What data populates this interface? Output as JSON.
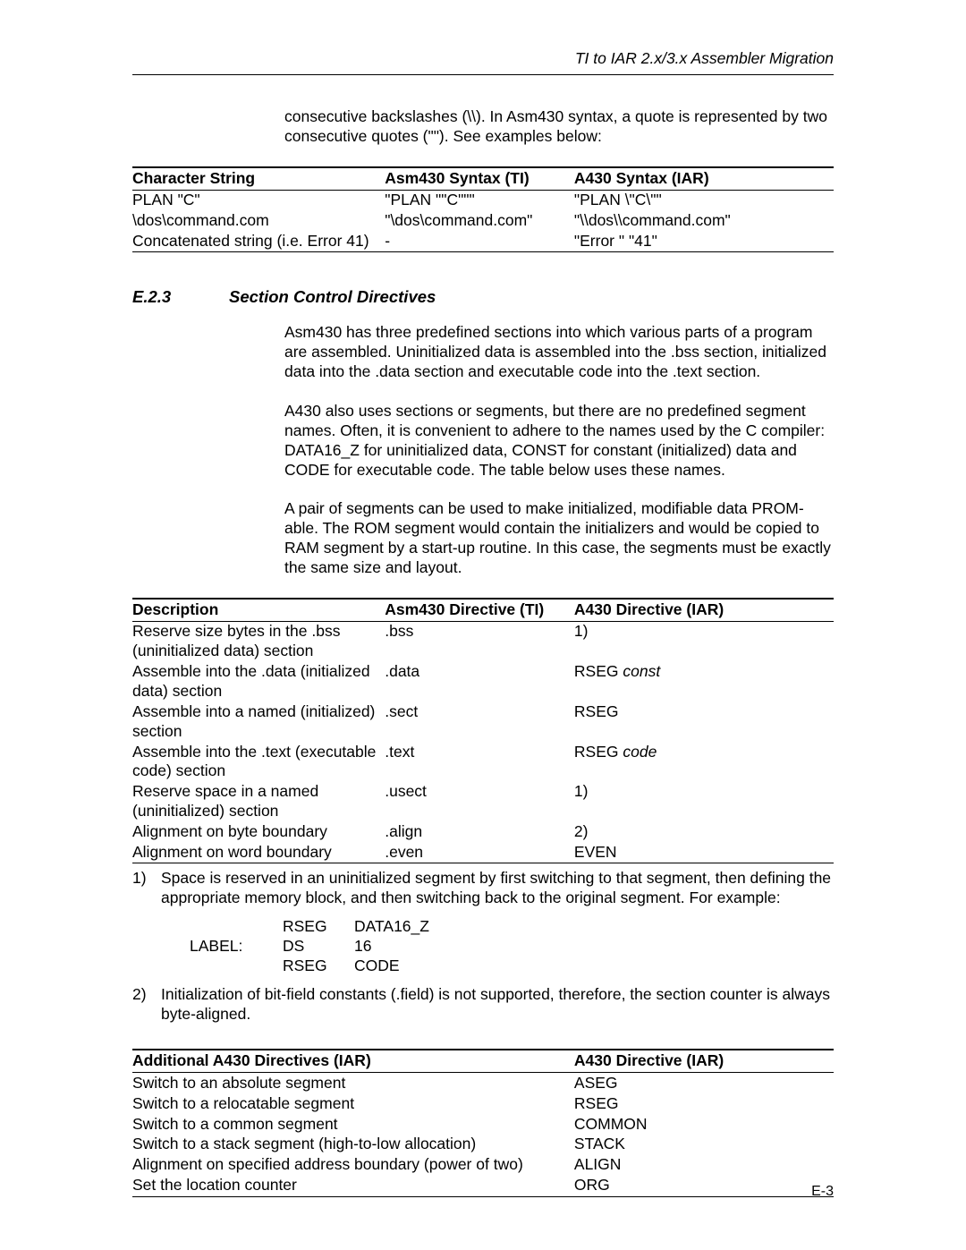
{
  "running_header": "TI to IAR 2.x/3.x Assembler Migration",
  "intro_para": "consecutive backslashes (\\\\). In Asm430 syntax, a quote is represented by two consecutive quotes (\"\"). See examples below:",
  "table1": {
    "headers": [
      "Character String",
      "Asm430 Syntax (TI)",
      "A430 Syntax (IAR)"
    ],
    "col_widths": [
      "36%",
      "27%",
      "37%"
    ],
    "rows": [
      [
        "PLAN \"C\"",
        "\"PLAN \"\"C\"\"\"",
        "\"PLAN \\\"C\\\"\""
      ],
      [
        "\\dos\\command.com",
        "\"\\dos\\command.com\"",
        "\"\\\\dos\\\\command.com\""
      ],
      [
        "Concatenated string (i.e. Error 41)",
        "-",
        "\"Error \" \"41\""
      ]
    ]
  },
  "section": {
    "number": "E.2.3",
    "title": "Section Control Directives"
  },
  "para1": "Asm430 has three predefined sections into which various parts of a program are assembled. Uninitialized data is assembled into the .bss section, initialized data into the .data section and executable code into the .text section.",
  "para2": "A430 also uses sections or segments, but there are no predefined segment names. Often, it is convenient to adhere to the names used by the C compiler: DATA16_Z for uninitialized data, CONST for constant (initialized) data and CODE for executable code. The table below uses these names.",
  "para3": "A pair of segments can be used to make initialized, modifiable data PROM-able. The ROM segment would contain the initializers and would be copied to RAM segment by a start-up routine. In this case, the segments must be exactly the same size and layout.",
  "table2": {
    "headers": [
      "Description",
      "Asm430 Directive (TI)",
      "A430 Directive (IAR)"
    ],
    "col_widths": [
      "36%",
      "27%",
      "37%"
    ],
    "rows": [
      {
        "c1": "Reserve size bytes in the .bss (uninitialized data) section",
        "c2": ".bss",
        "c3": "1)",
        "c3_ital": false
      },
      {
        "c1": "Assemble into the .data (initialized data) section",
        "c2": ".data",
        "c3_pre": "RSEG ",
        "c3_ital_txt": "const"
      },
      {
        "c1": "Assemble into a named (initialized) section",
        "c2": ".sect",
        "c3": "RSEG"
      },
      {
        "c1": "Assemble into the .text (executable code) section",
        "c2": ".text",
        "c3_pre": "RSEG ",
        "c3_ital_txt": "code"
      },
      {
        "c1": "Reserve space in a named (uninitialized) section",
        "c2": ".usect",
        "c3": "1)"
      },
      {
        "c1": "Alignment on byte boundary",
        "c2": ".align",
        "c3": "2)"
      },
      {
        "c1": "Alignment on word boundary",
        "c2": ".even",
        "c3": "EVEN"
      }
    ]
  },
  "footnote1_num": "1)",
  "footnote1_txt": "Space is reserved in an uninitialized segment by first switching to that segment, then defining the appropriate memory block, and then switching back to the original segment. For example:",
  "code": [
    [
      "",
      "RSEG",
      "DATA16_Z"
    ],
    [
      "LABEL:",
      "DS",
      "16"
    ],
    [
      "",
      "RSEG",
      "CODE"
    ]
  ],
  "footnote2_num": "2)",
  "footnote2_txt": "Initialization of bit-field constants (.field) is not supported, therefore, the section counter is always byte-aligned.",
  "table3": {
    "headers": [
      "Additional A430 Directives (IAR)",
      "A430 Directive (IAR)"
    ],
    "col_widths": [
      "63%",
      "37%"
    ],
    "rows": [
      [
        "Switch to an absolute segment",
        "ASEG"
      ],
      [
        "Switch to a relocatable segment",
        "RSEG"
      ],
      [
        "Switch to a common segment",
        "COMMON"
      ],
      [
        "Switch to a stack segment (high-to-low allocation)",
        "STACK"
      ],
      [
        "Alignment on specified address boundary (power of two)",
        "ALIGN"
      ],
      [
        "Set the location counter",
        "ORG"
      ]
    ]
  },
  "page_number": "E-3"
}
